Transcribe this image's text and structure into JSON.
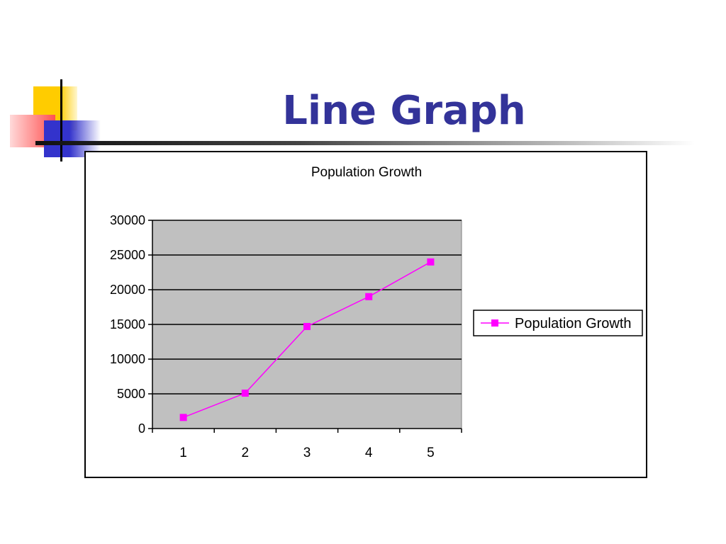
{
  "slide": {
    "title": "Line Graph"
  },
  "chart_data": {
    "type": "line",
    "title": "Population Growth",
    "xlabel": "",
    "ylabel": "",
    "categories": [
      "1",
      "2",
      "3",
      "4",
      "5"
    ],
    "series": [
      {
        "name": "Population Growth",
        "values": [
          1600,
          5100,
          14700,
          19000,
          24000
        ],
        "color": "#ff00ff"
      }
    ],
    "ylim": [
      0,
      30000
    ],
    "yticks": [
      "0",
      "5000",
      "10000",
      "15000",
      "20000",
      "25000",
      "30000"
    ],
    "grid": true,
    "plot_background": "#c0c0c0",
    "legend_position": "right"
  }
}
